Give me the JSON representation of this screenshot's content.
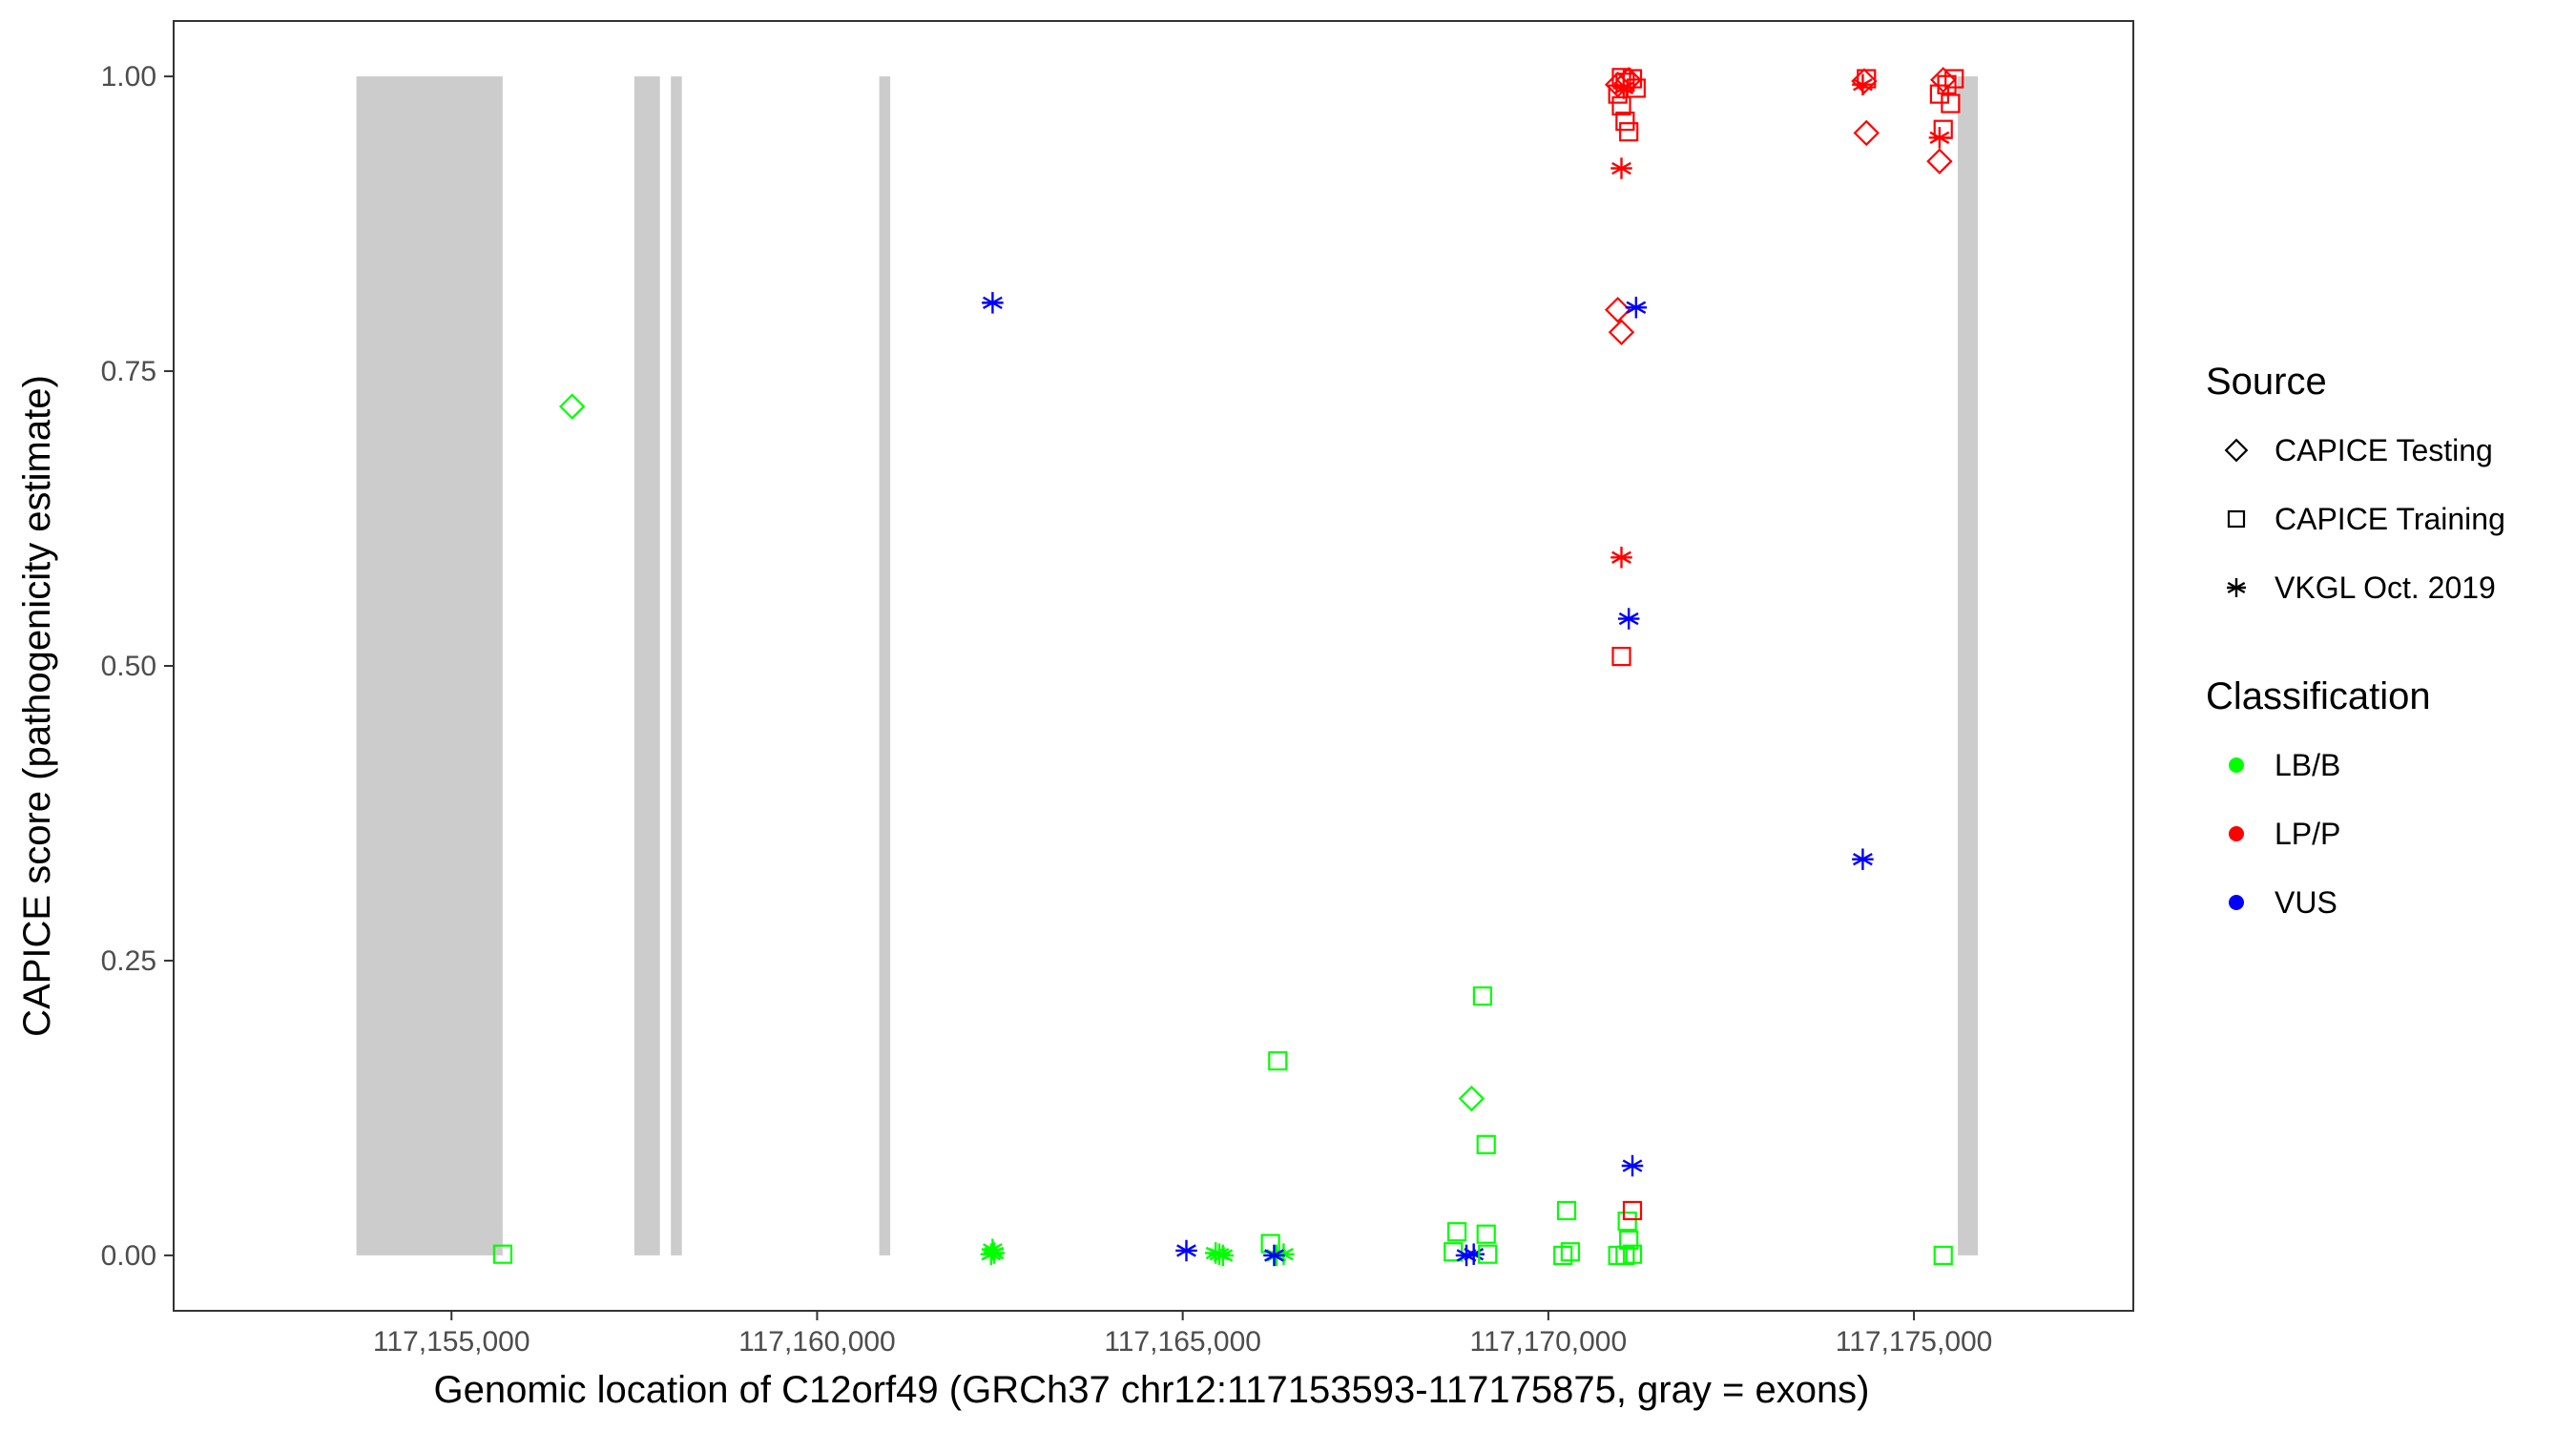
{
  "chart_data": {
    "type": "scatter",
    "title": "",
    "xlabel": "Genomic location of C12orf49 (GRCh37 chr12:117153593-117175875, gray = exons)",
    "ylabel": "CAPICE score (pathogenicity estimate)",
    "xlim": [
      117151200,
      117178000
    ],
    "ylim": [
      -0.047,
      1.047
    ],
    "x_ticks": [
      117155000,
      117160000,
      117165000,
      117170000,
      117175000
    ],
    "x_tick_labels": [
      "117,155,000",
      "117,160,000",
      "117,165,000",
      "117,170,000",
      "117,175,000"
    ],
    "y_ticks": [
      0,
      0.25,
      0.5,
      0.75,
      1.0
    ],
    "y_tick_labels": [
      "0.00",
      "0.25",
      "0.50",
      "0.75",
      "1.00"
    ],
    "grid": false,
    "exons": [
      {
        "start": 117153700,
        "end": 117155700
      },
      {
        "start": 117157500,
        "end": 117157850
      },
      {
        "start": 117158000,
        "end": 117158150
      },
      {
        "start": 117160850,
        "end": 117161000
      },
      {
        "start": 117175600,
        "end": 117175875
      }
    ],
    "legends": [
      {
        "title": "Source",
        "placement": "right",
        "items": [
          {
            "label": "CAPICE Testing",
            "shape": "diamond"
          },
          {
            "label": "CAPICE Training",
            "shape": "square"
          },
          {
            "label": "VKGL Oct. 2019",
            "shape": "asterisk"
          }
        ]
      },
      {
        "title": "Classification",
        "placement": "right",
        "items": [
          {
            "label": "LB/B",
            "color": "#00ff00"
          },
          {
            "label": "LP/P",
            "color": "#ff0000"
          },
          {
            "label": "VUS",
            "color": "#0000ff"
          }
        ]
      }
    ],
    "colors": {
      "LB/B": "#00ff00",
      "LP/P": "#ff0000",
      "VUS": "#0000ff",
      "exon": "#cccccc"
    },
    "points": [
      {
        "x": 117155700,
        "y": 0.001,
        "source": "square",
        "class": "LB/B"
      },
      {
        "x": 117156650,
        "y": 0.72,
        "source": "diamond",
        "class": "LB/B"
      },
      {
        "x": 117162400,
        "y": 0.005,
        "source": "asterisk",
        "class": "LB/B"
      },
      {
        "x": 117162420,
        "y": 0.002,
        "source": "asterisk",
        "class": "LB/B"
      },
      {
        "x": 117162380,
        "y": 0.001,
        "source": "asterisk",
        "class": "LB/B"
      },
      {
        "x": 117162400,
        "y": 0.808,
        "source": "asterisk",
        "class": "VUS"
      },
      {
        "x": 117165050,
        "y": 0.004,
        "source": "asterisk",
        "class": "VUS"
      },
      {
        "x": 117165500,
        "y": 0.001,
        "source": "asterisk",
        "class": "LB/B"
      },
      {
        "x": 117165550,
        "y": 0.0,
        "source": "asterisk",
        "class": "LB/B"
      },
      {
        "x": 117165450,
        "y": 0.002,
        "source": "asterisk",
        "class": "LB/B"
      },
      {
        "x": 117166200,
        "y": 0.01,
        "source": "square",
        "class": "LB/B"
      },
      {
        "x": 117166300,
        "y": 0.165,
        "source": "square",
        "class": "LB/B"
      },
      {
        "x": 117166280,
        "y": 0.0,
        "source": "asterisk",
        "class": "LB/B"
      },
      {
        "x": 117166380,
        "y": 0.001,
        "source": "asterisk",
        "class": "LB/B"
      },
      {
        "x": 117166250,
        "y": 0.0,
        "source": "asterisk",
        "class": "VUS"
      },
      {
        "x": 117168750,
        "y": 0.02,
        "source": "square",
        "class": "LB/B"
      },
      {
        "x": 117168700,
        "y": 0.003,
        "source": "square",
        "class": "LB/B"
      },
      {
        "x": 117168880,
        "y": 0.0,
        "source": "asterisk",
        "class": "VUS"
      },
      {
        "x": 117168980,
        "y": 0.001,
        "source": "asterisk",
        "class": "VUS"
      },
      {
        "x": 117168950,
        "y": 0.133,
        "source": "diamond",
        "class": "LB/B"
      },
      {
        "x": 117169100,
        "y": 0.22,
        "source": "square",
        "class": "LB/B"
      },
      {
        "x": 117169150,
        "y": 0.094,
        "source": "square",
        "class": "LB/B"
      },
      {
        "x": 117169150,
        "y": 0.018,
        "source": "square",
        "class": "LB/B"
      },
      {
        "x": 117169170,
        "y": 0.001,
        "source": "square",
        "class": "LB/B"
      },
      {
        "x": 117170250,
        "y": 0.038,
        "source": "square",
        "class": "LB/B"
      },
      {
        "x": 117170300,
        "y": 0.003,
        "source": "square",
        "class": "LB/B"
      },
      {
        "x": 117170200,
        "y": 0.0,
        "source": "square",
        "class": "LB/B"
      },
      {
        "x": 117170950,
        "y": 0.0,
        "source": "square",
        "class": "LB/B"
      },
      {
        "x": 117171050,
        "y": 0.0,
        "source": "square",
        "class": "LB/B"
      },
      {
        "x": 117171150,
        "y": 0.001,
        "source": "square",
        "class": "LB/B"
      },
      {
        "x": 117171100,
        "y": 0.013,
        "source": "square",
        "class": "LB/B"
      },
      {
        "x": 117171080,
        "y": 0.029,
        "source": "square",
        "class": "LB/B"
      },
      {
        "x": 117171150,
        "y": 0.038,
        "source": "square",
        "class": "LP/P"
      },
      {
        "x": 117171150,
        "y": 0.076,
        "source": "asterisk",
        "class": "VUS"
      },
      {
        "x": 117171000,
        "y": 0.508,
        "source": "square",
        "class": "LP/P"
      },
      {
        "x": 117171100,
        "y": 0.54,
        "source": "asterisk",
        "class": "VUS"
      },
      {
        "x": 117171000,
        "y": 0.592,
        "source": "asterisk",
        "class": "LP/P"
      },
      {
        "x": 117171000,
        "y": 0.783,
        "source": "diamond",
        "class": "LP/P"
      },
      {
        "x": 117170950,
        "y": 0.802,
        "source": "diamond",
        "class": "LP/P"
      },
      {
        "x": 117171200,
        "y": 0.804,
        "source": "asterisk",
        "class": "VUS"
      },
      {
        "x": 117171000,
        "y": 0.922,
        "source": "asterisk",
        "class": "LP/P"
      },
      {
        "x": 117171100,
        "y": 0.953,
        "source": "square",
        "class": "LP/P"
      },
      {
        "x": 117171050,
        "y": 0.962,
        "source": "square",
        "class": "LP/P"
      },
      {
        "x": 117171000,
        "y": 0.975,
        "source": "square",
        "class": "LP/P"
      },
      {
        "x": 117170950,
        "y": 0.985,
        "source": "square",
        "class": "LP/P"
      },
      {
        "x": 117171200,
        "y": 0.99,
        "source": "square",
        "class": "LP/P"
      },
      {
        "x": 117171050,
        "y": 0.995,
        "source": "square",
        "class": "LP/P"
      },
      {
        "x": 117171000,
        "y": 0.999,
        "source": "square",
        "class": "LP/P"
      },
      {
        "x": 117171150,
        "y": 0.998,
        "source": "square",
        "class": "LP/P"
      },
      {
        "x": 117170950,
        "y": 0.993,
        "source": "diamond",
        "class": "LP/P"
      },
      {
        "x": 117171100,
        "y": 0.997,
        "source": "diamond",
        "class": "LP/P"
      },
      {
        "x": 117171030,
        "y": 0.99,
        "source": "asterisk",
        "class": "LP/P"
      },
      {
        "x": 117174350,
        "y": 0.952,
        "source": "diamond",
        "class": "LP/P"
      },
      {
        "x": 117174300,
        "y": 0.993,
        "source": "asterisk",
        "class": "LP/P"
      },
      {
        "x": 117174350,
        "y": 0.998,
        "source": "square",
        "class": "LP/P"
      },
      {
        "x": 117174320,
        "y": 0.996,
        "source": "diamond",
        "class": "LP/P"
      },
      {
        "x": 117174300,
        "y": 0.336,
        "source": "asterisk",
        "class": "VUS"
      },
      {
        "x": 117175350,
        "y": 0.928,
        "source": "diamond",
        "class": "LP/P"
      },
      {
        "x": 117175350,
        "y": 0.948,
        "source": "asterisk",
        "class": "LP/P"
      },
      {
        "x": 117175400,
        "y": 0.955,
        "source": "square",
        "class": "LP/P"
      },
      {
        "x": 117175500,
        "y": 0.977,
        "source": "square",
        "class": "LP/P"
      },
      {
        "x": 117175350,
        "y": 0.985,
        "source": "square",
        "class": "LP/P"
      },
      {
        "x": 117175450,
        "y": 0.993,
        "source": "square",
        "class": "LP/P"
      },
      {
        "x": 117175400,
        "y": 0.997,
        "source": "diamond",
        "class": "LP/P"
      },
      {
        "x": 117175550,
        "y": 0.998,
        "source": "square",
        "class": "LP/P"
      },
      {
        "x": 117175400,
        "y": 0.0,
        "source": "square",
        "class": "LB/B"
      }
    ]
  }
}
